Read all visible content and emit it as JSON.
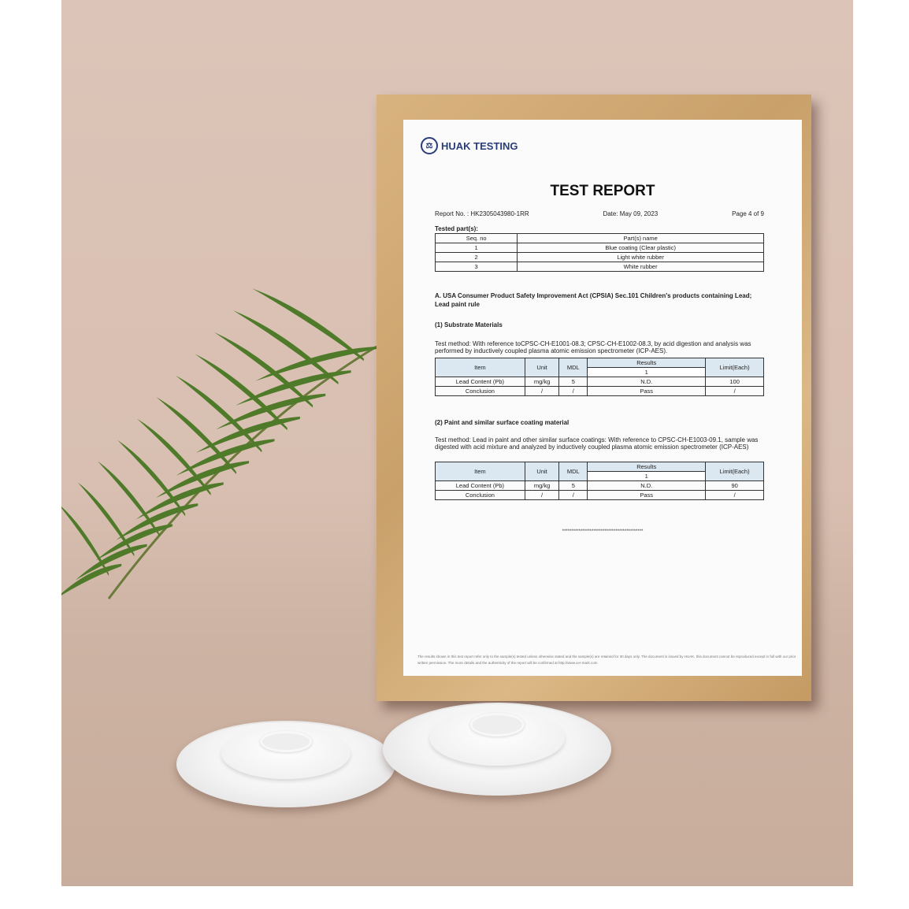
{
  "report": {
    "company": "HUAK TESTING",
    "title": "TEST REPORT",
    "report_no": "Report No. : HK2305043980-1RR",
    "date": "Date: May 09, 2023",
    "page": "Page 4 of 9",
    "tested_parts_label": "Tested part(s):",
    "parts_headers": [
      "Seq. no",
      "Part(s) name"
    ],
    "parts": [
      [
        "1",
        "Blue coating (Clear plastic)"
      ],
      [
        "2",
        "Light white rubber"
      ],
      [
        "3",
        "White rubber"
      ]
    ],
    "section_a": "A. USA Consumer Product Safety Improvement Act (CPSIA) Sec.101 Children's products containing Lead; Lead paint rule",
    "sub1": {
      "title": "(1) Substrate Materials",
      "method": "Test method: With reference toCPSC-CH-E1001-08.3; CPSC-CH-E1002-08.3, by acid digestion and analysis was performed by inductively coupled plasma atomic emission spectrometer (ICP-AES).",
      "headers": [
        "Item",
        "Unit",
        "MDL",
        "Results",
        "1",
        "Limit(Each)"
      ],
      "rows": [
        [
          "Lead Content (Pb)",
          "mg/kg",
          "5",
          "N.D.",
          "100"
        ],
        [
          "Conclusion",
          "/",
          "/",
          "Pass",
          "/"
        ]
      ]
    },
    "sub2": {
      "title": "(2) Paint and similar surface coating material",
      "method": "Test method: Lead in paint and other similar surface coatings: With reference to CPSC-CH-E1003-09.1, sample was digested with acid mixture and analyzed by inductively coupled plasma atomic emission spectrometer (ICP-AES)",
      "headers": [
        "Item",
        "Unit",
        "MDL",
        "Results",
        "1",
        "Limit(Each)"
      ],
      "rows": [
        [
          "Lead Content (Pb)",
          "mg/kg",
          "5",
          "N.D.",
          "90"
        ],
        [
          "Conclusion",
          "/",
          "/",
          "Pass",
          "/"
        ]
      ]
    },
    "end_marker": "********************************************",
    "footer": "The results shown in this test report refer only to the sample(s) tested unless otherwise stated and the sample(s) are retained for 30 days only. The document is issued by HUAK, this document cannot be reproduced except in full with our prior written permission. The more details and the authenticity of the report will be confirmed at http://www.cer-mark.com"
  },
  "colors": {
    "wall": "#dcc4b8",
    "frame": "#d0a872",
    "table_header": "#dbe8f1",
    "logo": "#2a3d7a",
    "leaf": "#4f7a2a"
  }
}
